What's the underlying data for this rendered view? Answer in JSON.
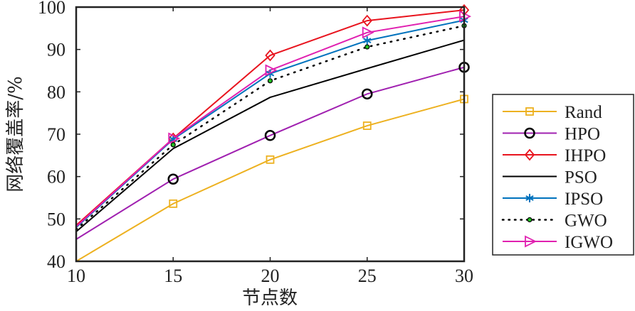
{
  "chart_data": {
    "type": "line",
    "title": "",
    "xlabel": "节点数",
    "ylabel": "网络覆盖率/%",
    "xlim": [
      10,
      30
    ],
    "ylim": [
      40,
      100
    ],
    "xticks": [
      "10",
      "15",
      "20",
      "25",
      "30"
    ],
    "yticks": [
      "40",
      "50",
      "60",
      "70",
      "80",
      "90",
      "100"
    ],
    "x": [
      10,
      15,
      20,
      25,
      30
    ],
    "grid": false,
    "legend_position": "right",
    "series": [
      {
        "name": "Rand",
        "color": "#EDB120",
        "marker": "square",
        "dash": "solid",
        "values": [
          40.0,
          53.6,
          64.0,
          72.0,
          78.3
        ]
      },
      {
        "name": "HPO",
        "color": "#A020B0",
        "marker": "circle",
        "dash": "solid",
        "values": [
          45.2,
          59.4,
          69.7,
          79.5,
          85.8
        ]
      },
      {
        "name": "IHPO",
        "color": "#E8141E",
        "marker": "diamond",
        "dash": "solid",
        "values": [
          48.5,
          69.0,
          88.6,
          96.8,
          99.3
        ]
      },
      {
        "name": "PSO",
        "color": "#000000",
        "marker": "none",
        "dash": "solid",
        "values": [
          47.0,
          66.6,
          78.7,
          85.5,
          92.2
        ]
      },
      {
        "name": "IPSO",
        "color": "#0072BD",
        "marker": "star",
        "dash": "solid",
        "values": [
          48.0,
          68.8,
          84.3,
          92.1,
          96.9
        ]
      },
      {
        "name": "GWO",
        "color": "#000000",
        "marker": "dot",
        "dash": "dotted",
        "values": [
          47.5,
          67.5,
          82.6,
          90.6,
          95.6
        ]
      },
      {
        "name": "IGWO",
        "color": "#E020B0",
        "marker": "triangle-right",
        "dash": "solid",
        "values": [
          48.2,
          69.0,
          85.1,
          94.0,
          97.8
        ]
      }
    ]
  }
}
